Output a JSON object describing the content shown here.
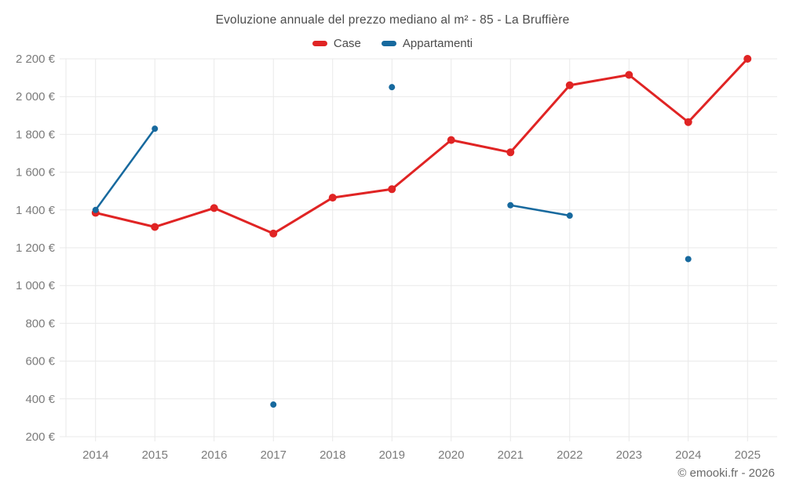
{
  "page": {
    "background": "#ffffff"
  },
  "footer": {
    "credit": "© emooki.fr - 2026"
  },
  "chart_data": {
    "type": "line",
    "title": "Evoluzione annuale del prezzo mediano al m² - 85 - La Bruffière",
    "categories": [
      "2014",
      "2015",
      "2016",
      "2017",
      "2018",
      "2019",
      "2020",
      "2021",
      "2022",
      "2023",
      "2024",
      "2025"
    ],
    "series": [
      {
        "name": "Case",
        "color": "#e02424",
        "line_width": 3,
        "point_radius": 5,
        "values": [
          1385,
          1310,
          1410,
          1275,
          1465,
          1510,
          1770,
          1705,
          2060,
          2115,
          1865,
          2200
        ]
      },
      {
        "name": "Appartamenti",
        "color": "#17699e",
        "line_width": 2.5,
        "point_radius": 4,
        "values": [
          1400,
          1830,
          null,
          370,
          null,
          2050,
          null,
          1425,
          1370,
          null,
          1140,
          null
        ]
      }
    ],
    "xlabel": "",
    "ylabel": "",
    "ylim": [
      200,
      2200
    ],
    "ytick_step": 200,
    "ytick_suffix": " €",
    "grid": true,
    "legend_position": "top",
    "grid_color": "#e9e9e9",
    "tick_text_color": "#7b7b7b"
  }
}
